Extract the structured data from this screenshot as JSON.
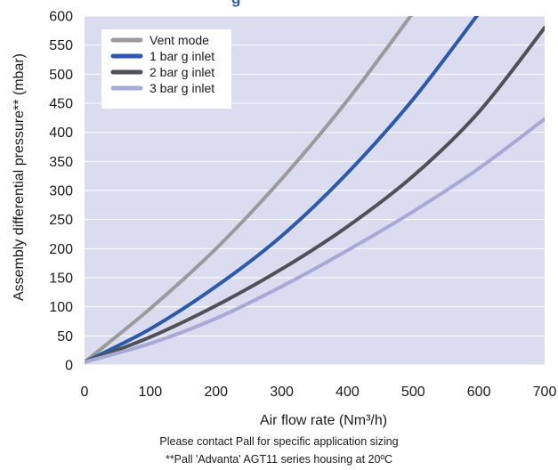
{
  "chart_data": {
    "type": "line",
    "title": "g",
    "xlabel": "Air flow rate (Nm³/h)",
    "ylabel": "Assembly differential pressure** (mbar)",
    "xlim": [
      0,
      700
    ],
    "ylim": [
      0,
      600
    ],
    "x_ticks": [
      "0",
      "100",
      "200",
      "300",
      "400",
      "500",
      "600",
      "700"
    ],
    "y_ticks": [
      "0",
      "50",
      "100",
      "150",
      "200",
      "250",
      "300",
      "350",
      "400",
      "450",
      "500",
      "550",
      "600"
    ],
    "grid": true,
    "legend_position": "top-left",
    "background_color": "#dcdcf0",
    "series": [
      {
        "name": "Vent mode",
        "color": "#9a9a9a",
        "x": [
          0,
          100,
          200,
          300,
          400,
          500
        ],
        "y": [
          5,
          97,
          200,
          320,
          455,
          606
        ]
      },
      {
        "name": "1 bar g inlet",
        "color": "#2b5aa8",
        "x": [
          0,
          100,
          200,
          300,
          400,
          500,
          600
        ],
        "y": [
          5,
          62,
          135,
          222,
          330,
          457,
          605
        ]
      },
      {
        "name": "2 bar g inlet",
        "color": "#505058",
        "x": [
          0,
          100,
          200,
          300,
          400,
          500,
          600,
          700
        ],
        "y": [
          5,
          48,
          102,
          165,
          238,
          325,
          435,
          580
        ]
      },
      {
        "name": "3 bar g inlet",
        "color": "#a6aad6",
        "x": [
          0,
          100,
          200,
          300,
          400,
          500,
          600,
          700
        ],
        "y": [
          5,
          37,
          80,
          135,
          197,
          264,
          338,
          423
        ]
      }
    ]
  },
  "footnotes": {
    "line1": "Please contact Pall for specific application sizing",
    "line2": "**Pall 'Advanta' AGT11 series housing at 20ºC"
  }
}
